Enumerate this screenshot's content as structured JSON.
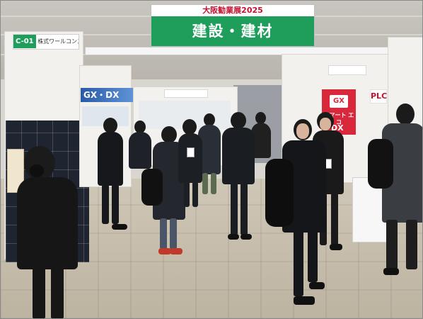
{
  "banner": {
    "event_title": "大阪勧業展2025",
    "category": "建設・建材"
  },
  "signs": {
    "booth_c01_code": "C-01",
    "booth_c01_name": "株式ワールコンストラクション",
    "left_panel_text": "GX・DX",
    "right_poster_text": "GX",
    "right_poster_sub": "スマート\nエコ",
    "plc_text": "PLC",
    "dx_label": "DX"
  },
  "colors": {
    "banner_green": "#1e9e5a",
    "banner_red_text": "#c8102e",
    "poster_red": "#d9283b",
    "panel_blue": "#2a5aa8"
  }
}
